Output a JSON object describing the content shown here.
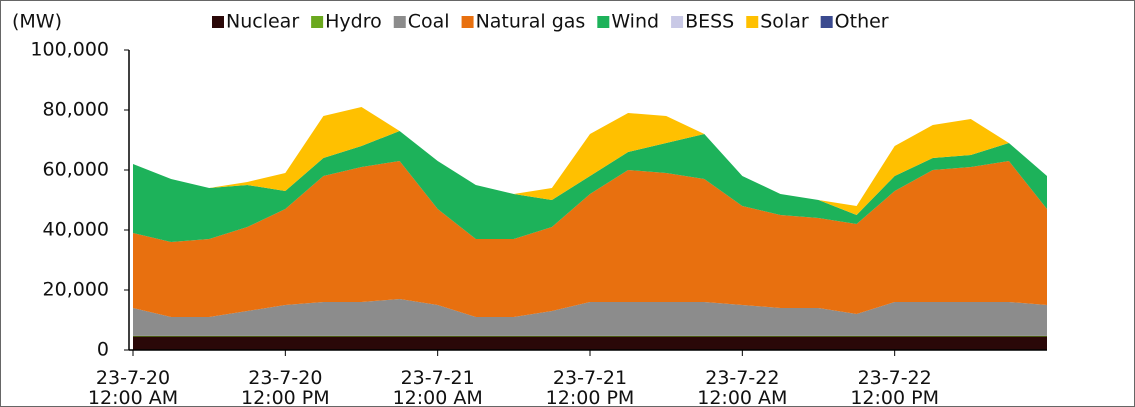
{
  "chart_data": {
    "type": "stacked_area",
    "y_label": "(MW)",
    "categories": [
      "23-7-20 12:00 AM",
      null,
      null,
      null,
      "23-7-20 12:00 PM",
      null,
      null,
      null,
      "23-7-21 12:00 AM",
      null,
      null,
      null,
      "23-7-21 12:00 PM",
      null,
      null,
      null,
      "23-7-22 12:00 AM",
      null,
      null,
      null,
      "23-7-22 12:00 PM",
      null,
      null,
      null,
      null
    ],
    "series": [
      {
        "name": "Nuclear",
        "color": "#2a0808",
        "values": [
          4500,
          4500,
          4500,
          4500,
          4500,
          4500,
          4500,
          4500,
          4500,
          4500,
          4500,
          4500,
          4500,
          4500,
          4500,
          4500,
          4500,
          4500,
          4500,
          4500,
          4500,
          4500,
          4500,
          4500,
          4500
        ]
      },
      {
        "name": "Hydro",
        "color": "#6aa81e",
        "values": [
          200,
          200,
          200,
          200,
          200,
          200,
          200,
          200,
          200,
          200,
          200,
          200,
          200,
          200,
          200,
          200,
          200,
          200,
          200,
          200,
          200,
          200,
          200,
          200,
          200
        ]
      },
      {
        "name": "Coal",
        "color": "#8c8c8c",
        "values": [
          9300,
          6300,
          6300,
          8300,
          10300,
          11300,
          11300,
          12300,
          10300,
          6300,
          6300,
          8300,
          11300,
          11300,
          11300,
          11300,
          10300,
          9300,
          9300,
          7300,
          11300,
          11300,
          11300,
          11300,
          10300
        ]
      },
      {
        "name": "Natural gas",
        "color": "#e8700f",
        "values": [
          25000,
          25000,
          26000,
          28000,
          32000,
          42000,
          45000,
          46000,
          32000,
          26000,
          26000,
          28000,
          36000,
          44000,
          43000,
          41000,
          33000,
          31000,
          30000,
          30000,
          37000,
          44000,
          45000,
          47000,
          32000
        ]
      },
      {
        "name": "Wind",
        "color": "#1db25a",
        "values": [
          23000,
          21000,
          17000,
          14000,
          6000,
          6000,
          7000,
          10000,
          16000,
          18000,
          15000,
          9000,
          6000,
          6000,
          10000,
          15000,
          10000,
          7000,
          6000,
          3000,
          5000,
          4000,
          4000,
          6000,
          11000
        ]
      },
      {
        "name": "BESS",
        "color": "#c9c9e6",
        "values": [
          0,
          0,
          0,
          0,
          0,
          0,
          0,
          0,
          0,
          0,
          0,
          0,
          0,
          0,
          0,
          0,
          0,
          0,
          0,
          0,
          0,
          0,
          0,
          0,
          0
        ]
      },
      {
        "name": "Solar",
        "color": "#ffc000",
        "values": [
          0,
          0,
          0,
          1000,
          6000,
          14000,
          13000,
          0,
          0,
          0,
          0,
          4000,
          14000,
          13000,
          9000,
          0,
          0,
          0,
          0,
          3000,
          10000,
          11000,
          12000,
          0,
          0
        ]
      },
      {
        "name": "Other",
        "color": "#3b4a8f",
        "values": [
          0,
          0,
          0,
          0,
          0,
          0,
          0,
          0,
          0,
          0,
          0,
          0,
          0,
          0,
          0,
          0,
          0,
          0,
          0,
          0,
          0,
          0,
          0,
          0,
          0
        ]
      }
    ],
    "ylim": [
      0,
      100000
    ],
    "yticks": [
      0,
      {
        "value": 20000,
        "label": "20,000"
      },
      {
        "value": 40000,
        "label": "40,000"
      },
      {
        "value": 60000,
        "label": "60,000"
      },
      {
        "value": 80000,
        "label": "80,000"
      },
      {
        "value": 100000,
        "label": "100,000"
      }
    ],
    "grid": false,
    "legend": "top"
  }
}
